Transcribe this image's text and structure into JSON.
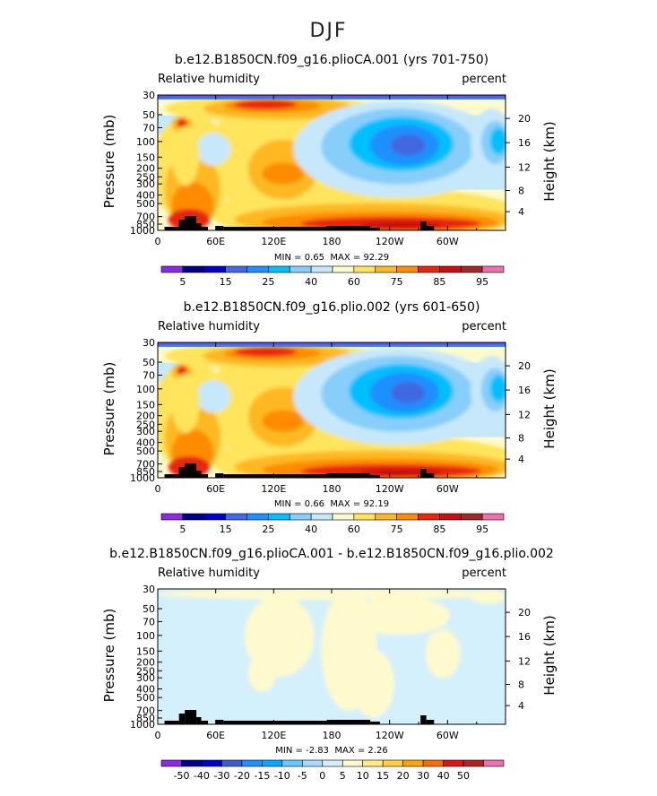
{
  "figure": {
    "title": "DJF"
  },
  "chart_data": [
    {
      "type": "heatmap",
      "title": "b.e12.B1850CN.f09_g16.plioCA.001 (yrs 701-750)",
      "variable": "Relative humidity",
      "units": "percent",
      "ylabel": "Pressure (mb)",
      "ylabel_right": "Height (km)",
      "x_ticks": [
        "0",
        "60E",
        "120E",
        "180",
        "120W",
        "60W"
      ],
      "y_ticks": [
        "30",
        "50",
        "70",
        "100",
        "150",
        "200",
        "250",
        "300",
        "400",
        "500",
        "700",
        "850",
        "1000"
      ],
      "height_ticks": [
        "20",
        "16",
        "12",
        "8",
        "4"
      ],
      "min_label": "MIN =",
      "min_value": "0.65",
      "max_label": "MAX =",
      "max_value": "92.29",
      "colorbar_labels": [
        "5",
        "15",
        "25",
        "40",
        "60",
        "75",
        "85",
        "95"
      ]
    },
    {
      "type": "heatmap",
      "title": "b.e12.B1850CN.f09_g16.plio.002 (yrs 601-650)",
      "variable": "Relative humidity",
      "units": "percent",
      "ylabel": "Pressure (mb)",
      "ylabel_right": "Height (km)",
      "x_ticks": [
        "0",
        "60E",
        "120E",
        "180",
        "120W",
        "60W"
      ],
      "y_ticks": [
        "30",
        "50",
        "70",
        "100",
        "150",
        "200",
        "250",
        "300",
        "400",
        "500",
        "700",
        "850",
        "1000"
      ],
      "height_ticks": [
        "20",
        "16",
        "12",
        "8",
        "4"
      ],
      "min_label": "MIN =",
      "min_value": "0.66",
      "max_label": "MAX =",
      "max_value": "92.19",
      "colorbar_labels": [
        "5",
        "15",
        "25",
        "40",
        "60",
        "75",
        "85",
        "95"
      ]
    },
    {
      "type": "heatmap",
      "title": "b.e12.B1850CN.f09_g16.plioCA.001 - b.e12.B1850CN.f09_g16.plio.002",
      "variable": "Relative humidity",
      "units": "percent",
      "ylabel": "Pressure (mb)",
      "ylabel_right": "Height (km)",
      "x_ticks": [
        "0",
        "60E",
        "120E",
        "180",
        "120W",
        "60W"
      ],
      "y_ticks": [
        "30",
        "50",
        "70",
        "100",
        "150",
        "200",
        "250",
        "300",
        "400",
        "500",
        "700",
        "850",
        "1000"
      ],
      "height_ticks": [
        "20",
        "16",
        "12",
        "8",
        "4"
      ],
      "min_label": "MIN =",
      "min_value": "-2.83",
      "max_label": "MAX =",
      "max_value": "2.26",
      "colorbar_labels": [
        "-50",
        "-40",
        "-30",
        "-20",
        "-15",
        "-10",
        "-5",
        "0",
        "5",
        "10",
        "15",
        "20",
        "30",
        "40",
        "50"
      ]
    }
  ],
  "colors": {
    "rh_scale": [
      "#8a2be2",
      "#000080",
      "#0000cd",
      "#4169e1",
      "#1e90ff",
      "#00bfff",
      "#87cefa",
      "#c6e8fa",
      "#fffacd",
      "#ffe45c",
      "#ffb820",
      "#ff8c00",
      "#e8280a",
      "#c81010",
      "#a02828",
      "#ee6fb0"
    ],
    "diff_scale": [
      "#8a2be2",
      "#00008b",
      "#0000cd",
      "#3a5fcd",
      "#1e90ff",
      "#00aaff",
      "#66c8ff",
      "#a7dcff",
      "#d4f0fc",
      "#fffacd",
      "#ffec80",
      "#ffd040",
      "#ffa500",
      "#ff6a00",
      "#dc1414",
      "#b22222",
      "#ee6fb0"
    ],
    "topography": "#000000",
    "top_band": "#7050e0"
  }
}
